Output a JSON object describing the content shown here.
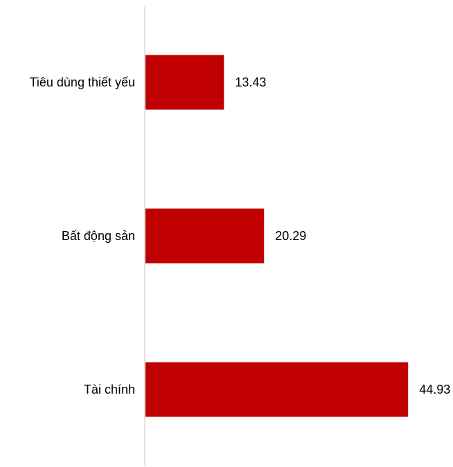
{
  "chart_data": {
    "type": "bar",
    "orientation": "horizontal",
    "categories": [
      "Tiêu dùng thiết yếu",
      "Bất động sản",
      "Tài chính"
    ],
    "values": [
      13.43,
      20.29,
      44.93
    ],
    "data_labels": [
      "13.43",
      "20.29",
      "44.93"
    ],
    "title": "",
    "xlabel": "",
    "ylabel": "",
    "xlim": [
      0,
      45
    ],
    "grid": false,
    "legend": "none",
    "colors": {
      "bar": "#c00000",
      "axis": "#d9d9d9",
      "text": "#000000"
    }
  }
}
